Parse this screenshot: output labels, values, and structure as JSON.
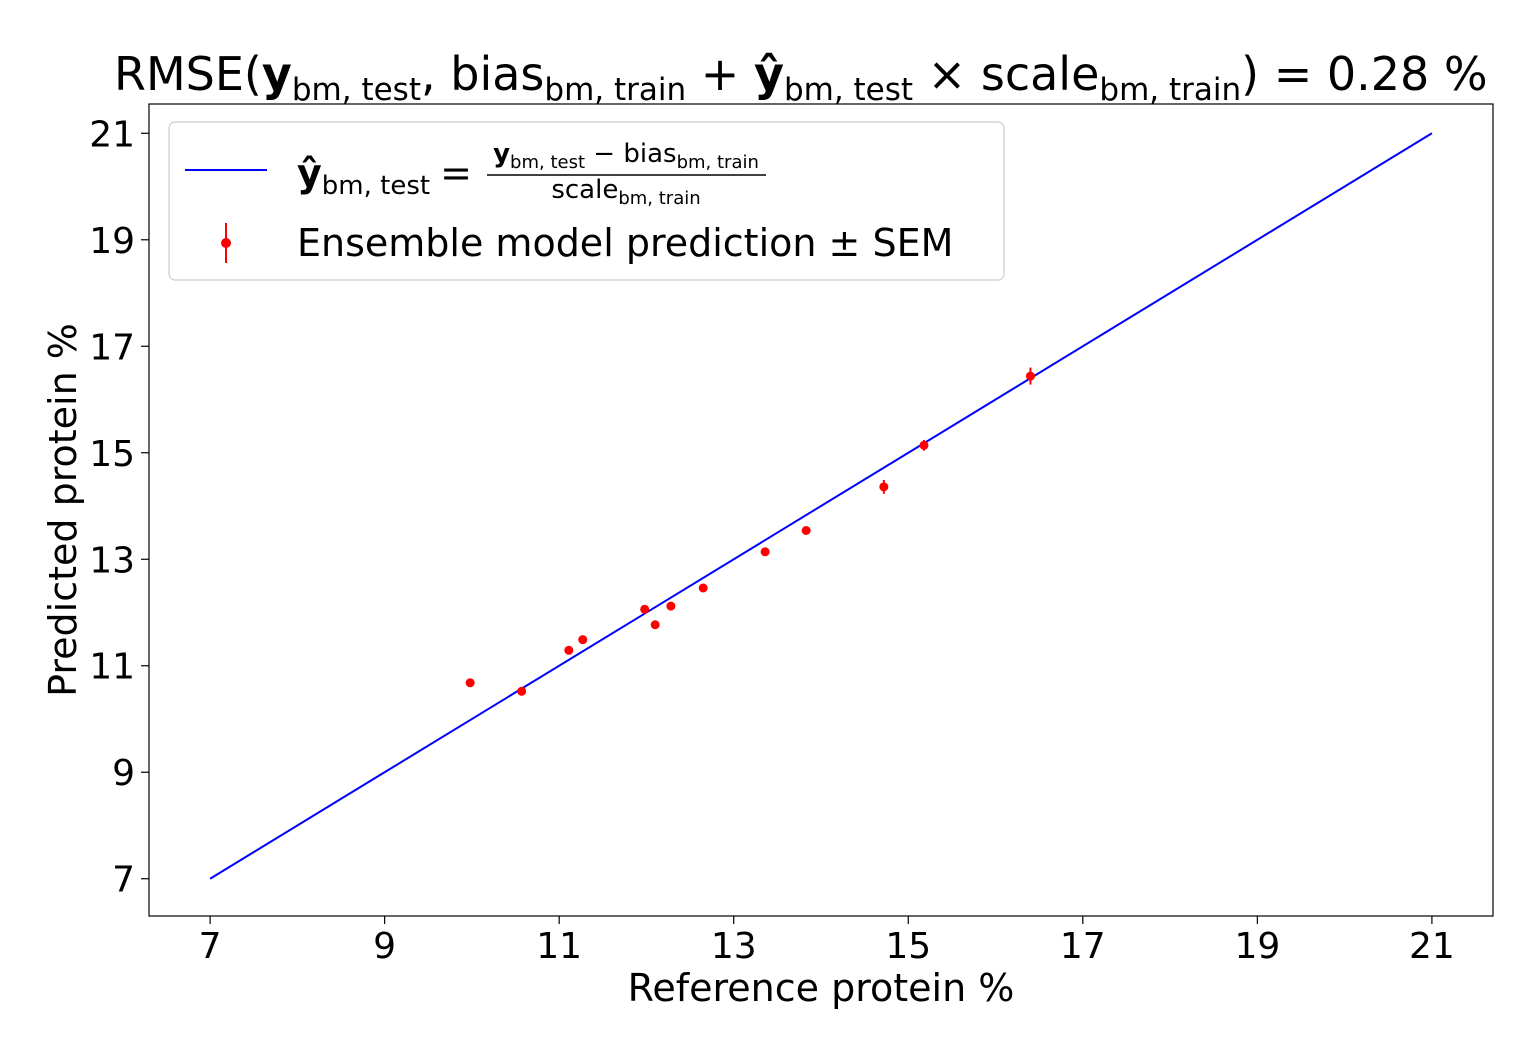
{
  "chart_data": {
    "type": "scatter",
    "title": {
      "prefix": "RMSE(",
      "y_bold": "y",
      "sub_test": "bm, test",
      "comma": ", ",
      "bias": "bias",
      "sub_train": "bm, train",
      "plus": " + ",
      "yhat_bold": "ŷ",
      "times": " × ",
      "scale": "scale",
      "suffix": ") = 0.28 %"
    },
    "xlabel": "Reference protein %",
    "ylabel": "Predicted protein %",
    "xlim": [
      6.3,
      21.7
    ],
    "ylim": [
      6.3,
      21.55
    ],
    "xticks": [
      7,
      9,
      11,
      13,
      15,
      17,
      19,
      21
    ],
    "yticks": [
      7,
      9,
      11,
      13,
      15,
      17,
      19,
      21
    ],
    "grid": false,
    "legend_position": "top-left",
    "legend": {
      "line_entry": {
        "lhs_bold": "ŷ",
        "lhs_sub": "bm, test",
        "equals": "=",
        "num_bold": "y",
        "num_sub": "bm, test",
        "minus": " − ",
        "num_bias": "bias",
        "num_bias_sub": "bm, train",
        "den": "scale",
        "den_sub": "bm, train"
      },
      "points_entry": "Ensemble model prediction ± SEM"
    },
    "series": [
      {
        "kind": "line",
        "color": "#0000ff",
        "x": [
          7,
          21
        ],
        "y": [
          7,
          21
        ]
      },
      {
        "kind": "errorbar",
        "color": "#ff0000",
        "points": [
          {
            "x": 9.98,
            "y": 10.68,
            "err": 0.03
          },
          {
            "x": 10.57,
            "y": 10.52,
            "err": 0.03
          },
          {
            "x": 11.11,
            "y": 11.29,
            "err": 0.06
          },
          {
            "x": 11.27,
            "y": 11.49,
            "err": 0.03
          },
          {
            "x": 11.98,
            "y": 12.06,
            "err": 0.03
          },
          {
            "x": 12.1,
            "y": 11.77,
            "err": 0.03
          },
          {
            "x": 12.28,
            "y": 12.12,
            "err": 0.03
          },
          {
            "x": 12.65,
            "y": 12.46,
            "err": 0.03
          },
          {
            "x": 13.36,
            "y": 13.14,
            "err": 0.03
          },
          {
            "x": 13.83,
            "y": 13.54,
            "err": 0.03
          },
          {
            "x": 14.72,
            "y": 14.36,
            "err": 0.13
          },
          {
            "x": 15.18,
            "y": 15.14,
            "err": 0.1
          },
          {
            "x": 16.4,
            "y": 16.44,
            "err": 0.16
          }
        ]
      }
    ]
  }
}
